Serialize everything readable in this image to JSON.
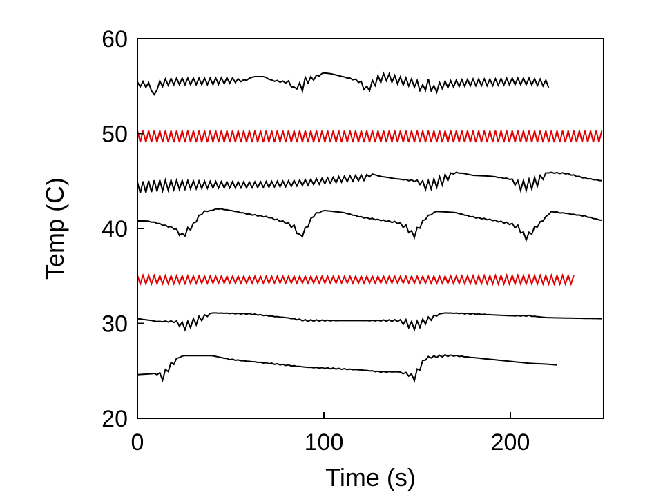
{
  "chart_data": {
    "type": "line",
    "xlabel": "Time (s)",
    "ylabel": "Temp (C)",
    "xlim": [
      0,
      250
    ],
    "ylim": [
      20,
      60
    ],
    "xticks": [
      0,
      100,
      200
    ],
    "yticks": [
      20,
      30,
      40,
      50,
      60
    ],
    "grid": false,
    "legend": "none",
    "series": [
      {
        "color": "#000000",
        "x": [
          0,
          4,
          7,
          9,
          10,
          12,
          15,
          20,
          30,
          40,
          50,
          58,
          62,
          68,
          72,
          80,
          82,
          84,
          86,
          88,
          90,
          93,
          97,
          100,
          104,
          110,
          114,
          118,
          121,
          123,
          125,
          128,
          133,
          140,
          146,
          150,
          153,
          156,
          159,
          163,
          167,
          172,
          180,
          190,
          200,
          210,
          215,
          220,
          221
        ],
        "y": [
          55.2,
          55.2,
          55.0,
          54.0,
          54.8,
          55.2,
          55.4,
          55.5,
          55.5,
          55.5,
          55.6,
          55.6,
          56.0,
          56.0,
          55.6,
          55.4,
          55.4,
          54.5,
          55.3,
          54.6,
          55.6,
          55.7,
          56.1,
          56.4,
          56.3,
          56.0,
          55.8,
          55.6,
          55.1,
          54.6,
          55.0,
          55.6,
          56.0,
          55.6,
          55.4,
          55.2,
          54.7,
          55.3,
          54.6,
          55.1,
          55.2,
          55.3,
          55.4,
          55.4,
          55.5,
          55.5,
          55.4,
          55.3,
          54.8
        ],
        "osc_amp": [
          0.25,
          0.3,
          0.3,
          0.1,
          0.3,
          0.35,
          0.35,
          0.35,
          0.35,
          0.35,
          0.3,
          0.05,
          0.0,
          0.0,
          0.05,
          0.1,
          0.2,
          0.4,
          0.4,
          0.4,
          0.35,
          0.3,
          0.1,
          0.0,
          0.0,
          0.0,
          0.05,
          0.1,
          0.3,
          0.4,
          0.4,
          0.45,
          0.4,
          0.4,
          0.4,
          0.4,
          0.45,
          0.45,
          0.45,
          0.4,
          0.35,
          0.35,
          0.35,
          0.35,
          0.35,
          0.35,
          0.35,
          0.3,
          0.1
        ]
      },
      {
        "color": "#e00000",
        "x": [
          0,
          50,
          100,
          150,
          200,
          250
        ],
        "y": [
          49.7,
          49.7,
          49.7,
          49.7,
          49.7,
          49.7
        ],
        "osc_amp": [
          0.6,
          0.6,
          0.6,
          0.6,
          0.6,
          0.6
        ]
      },
      {
        "color": "#000000",
        "x": [
          0,
          10,
          20,
          40,
          60,
          80,
          100,
          110,
          124,
          125,
          130,
          140,
          150,
          155,
          160,
          165,
          170,
          175,
          180,
          190,
          200,
          205,
          210,
          215,
          220,
          230,
          240,
          250
        ],
        "y": [
          44.3,
          44.5,
          44.6,
          44.6,
          44.6,
          44.7,
          45.0,
          45.2,
          45.4,
          45.8,
          45.5,
          45.2,
          45.0,
          44.5,
          44.8,
          45.2,
          45.9,
          45.8,
          45.6,
          45.5,
          45.2,
          44.5,
          44.6,
          45.0,
          45.9,
          45.8,
          45.3,
          45.0
        ],
        "osc_amp": [
          0.6,
          0.6,
          0.5,
          0.35,
          0.3,
          0.3,
          0.3,
          0.3,
          0.3,
          0.0,
          0.0,
          0.0,
          0.1,
          0.5,
          0.5,
          0.5,
          0.05,
          0.0,
          0.0,
          0.0,
          0.05,
          0.5,
          0.6,
          0.5,
          0.05,
          0.05,
          0.05,
          0.0
        ]
      },
      {
        "color": "#000000",
        "x": [
          0,
          5,
          10,
          15,
          20,
          24,
          26,
          28,
          30,
          33,
          36,
          40,
          43,
          50,
          60,
          70,
          80,
          85,
          87,
          90,
          92,
          95,
          100,
          110,
          120,
          130,
          140,
          145,
          148,
          150,
          152,
          155,
          160,
          170,
          180,
          190,
          200,
          205,
          208,
          210,
          213,
          217,
          222,
          225,
          230,
          240,
          250
        ],
        "y": [
          40.8,
          40.8,
          40.6,
          40.3,
          40.0,
          39.2,
          39.6,
          40.0,
          40.4,
          41.3,
          41.8,
          41.9,
          42.1,
          41.9,
          41.5,
          41.2,
          40.6,
          40.0,
          39.1,
          39.8,
          40.6,
          41.5,
          41.9,
          41.7,
          41.2,
          40.9,
          40.6,
          40.0,
          39.2,
          39.8,
          40.4,
          41.2,
          41.8,
          41.7,
          41.2,
          40.9,
          40.5,
          40.0,
          39.0,
          39.3,
          40.0,
          40.8,
          41.8,
          41.7,
          41.6,
          41.3,
          40.8
        ],
        "osc_amp": [
          0.0,
          0.0,
          0.05,
          0.05,
          0.1,
          0.3,
          0.3,
          0.3,
          0.2,
          0.1,
          0.05,
          0.0,
          0.05,
          0.0,
          0.05,
          0.05,
          0.1,
          0.3,
          0.3,
          0.3,
          0.2,
          0.1,
          0.0,
          0.0,
          0.05,
          0.05,
          0.1,
          0.3,
          0.3,
          0.3,
          0.2,
          0.1,
          0.0,
          0.0,
          0.05,
          0.05,
          0.1,
          0.3,
          0.3,
          0.3,
          0.2,
          0.1,
          0.0,
          0.05,
          0.0,
          0.05,
          0.0
        ]
      },
      {
        "color": "#e00000",
        "x": [
          0,
          50,
          100,
          150,
          200,
          234
        ],
        "y": [
          34.6,
          34.6,
          34.6,
          34.6,
          34.6,
          34.6
        ],
        "osc_amp": [
          0.45,
          0.35,
          0.35,
          0.35,
          0.45,
          0.45
        ]
      },
      {
        "color": "#000000",
        "x": [
          0,
          8,
          10,
          20,
          25,
          28,
          32,
          36,
          40,
          60,
          80,
          90,
          100,
          110,
          120,
          140,
          145,
          148,
          152,
          158,
          162,
          165,
          180,
          190,
          200,
          210,
          215,
          220,
          250
        ],
        "y": [
          30.5,
          30.3,
          30.2,
          30.2,
          29.7,
          29.9,
          30.3,
          30.7,
          31.1,
          31.0,
          30.6,
          30.3,
          30.3,
          30.3,
          30.3,
          30.3,
          30.0,
          29.7,
          30.0,
          30.6,
          31.0,
          31.1,
          31.0,
          30.9,
          30.8,
          30.8,
          30.7,
          30.6,
          30.5
        ],
        "osc_amp": [
          0.0,
          0.0,
          0.0,
          0.1,
          0.4,
          0.4,
          0.4,
          0.2,
          0.0,
          0.05,
          0.0,
          0.1,
          0.05,
          0.0,
          0.0,
          0.1,
          0.4,
          0.4,
          0.4,
          0.2,
          0.0,
          0.0,
          0.05,
          0.0,
          0.0,
          0.05,
          0.0,
          0.0,
          0.0
        ]
      },
      {
        "color": "#000000",
        "x": [
          0,
          8,
          10,
          12,
          14,
          16,
          18,
          20,
          22,
          25,
          30,
          40,
          45,
          50,
          60,
          70,
          80,
          90,
          100,
          110,
          120,
          130,
          140,
          146,
          148,
          150,
          152,
          155,
          160,
          165,
          170,
          180,
          190,
          200,
          210,
          220,
          226
        ],
        "y": [
          24.6,
          24.7,
          24.7,
          24.6,
          24.3,
          25.2,
          25.6,
          26.0,
          26.4,
          26.6,
          26.6,
          26.6,
          26.4,
          26.2,
          26.0,
          25.8,
          25.6,
          25.4,
          25.3,
          25.2,
          25.1,
          24.9,
          24.9,
          24.6,
          24.2,
          24.8,
          25.6,
          26.4,
          26.5,
          26.6,
          26.6,
          26.4,
          26.2,
          26.0,
          25.8,
          25.7,
          25.6
        ],
        "osc_amp": [
          0.0,
          0.0,
          0.05,
          0.2,
          0.4,
          0.4,
          0.3,
          0.2,
          0.05,
          0.0,
          0.0,
          0.0,
          0.0,
          0.05,
          0.0,
          0.05,
          0.05,
          0.0,
          0.05,
          0.05,
          0.0,
          0.05,
          0.0,
          0.2,
          0.4,
          0.4,
          0.3,
          0.1,
          0.1,
          0.1,
          0.05,
          0.0,
          0.0,
          0.0,
          0.0,
          0.0,
          0.0
        ]
      }
    ]
  }
}
